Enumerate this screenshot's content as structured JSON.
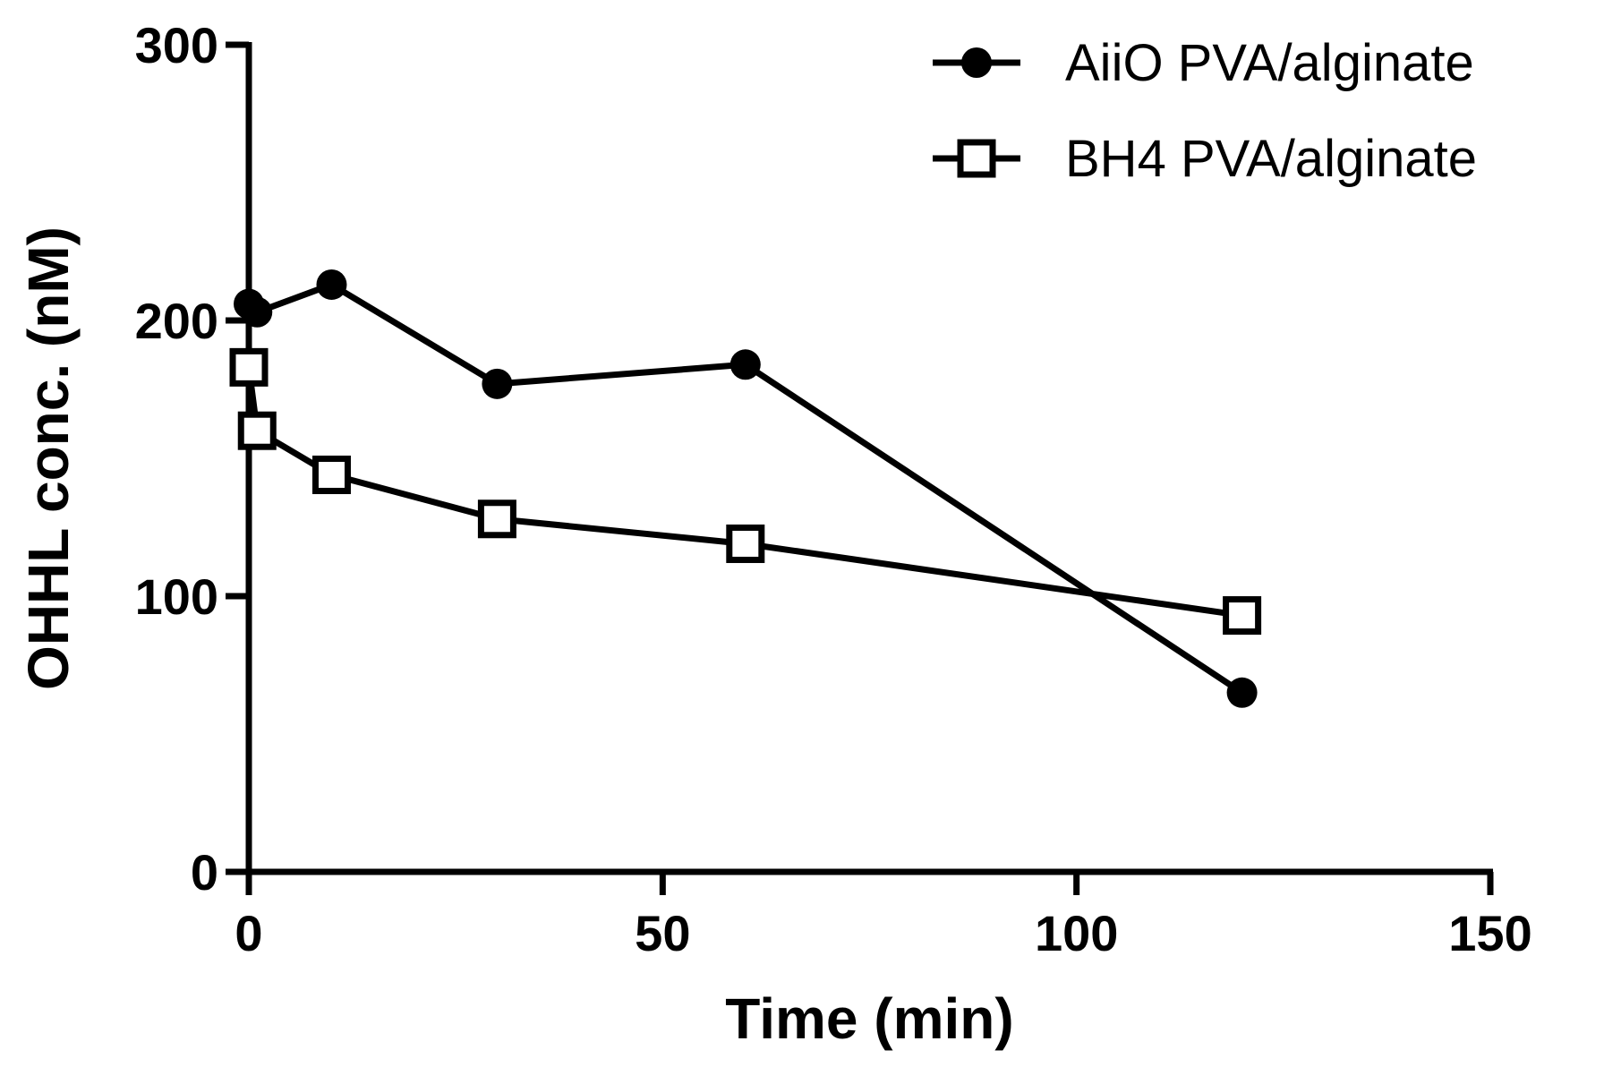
{
  "chart_data": {
    "type": "line",
    "title": "",
    "xlabel": "Time (min)",
    "ylabel": "OHHL conc. (nM)",
    "xlim": [
      0,
      150
    ],
    "ylim": [
      0,
      300
    ],
    "x_ticks": [
      "0",
      "50",
      "100",
      "150"
    ],
    "y_ticks": [
      "0",
      "100",
      "200",
      "300"
    ],
    "grid": false,
    "legend_position": "top-right",
    "series": [
      {
        "name": "AiiO PVA/alginate",
        "marker": "filled-circle",
        "color": "#000000",
        "points": [
          [
            0,
            206
          ],
          [
            1,
            203
          ],
          [
            10,
            213
          ],
          [
            30,
            177
          ],
          [
            60,
            184
          ],
          [
            120,
            65
          ]
        ]
      },
      {
        "name": "BH4 PVA/alginate",
        "marker": "open-square",
        "color": "#000000",
        "points": [
          [
            0,
            183
          ],
          [
            1,
            160
          ],
          [
            10,
            144
          ],
          [
            30,
            128
          ],
          [
            60,
            119
          ],
          [
            120,
            93
          ]
        ]
      }
    ]
  }
}
